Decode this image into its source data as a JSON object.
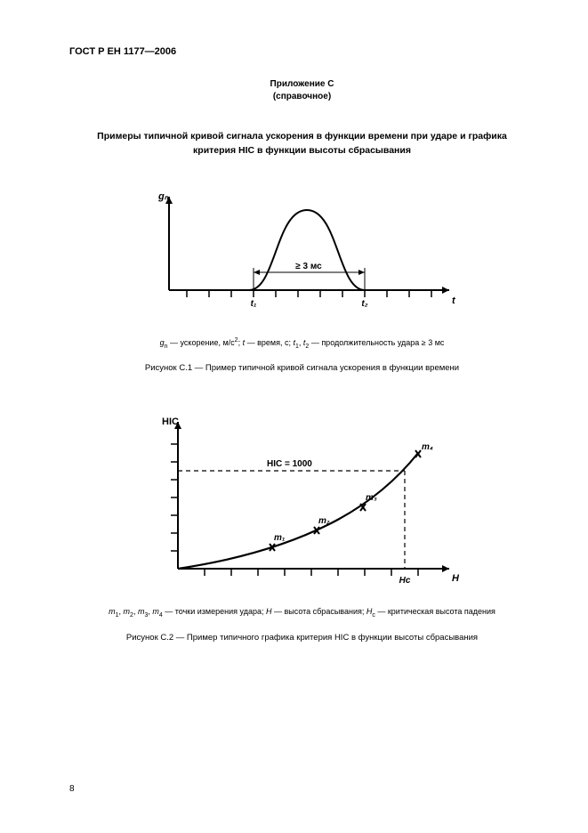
{
  "doc_header": "ГОСТ Р ЕН 1177—2006",
  "annex": {
    "line1": "Приложение С",
    "line2": "(справочное)"
  },
  "section_title": {
    "line1": "Примеры типичной кривой сигнала ускорения в функции времени при ударе и графика",
    "line2": "критерия HIC в функции высоты сбрасывания"
  },
  "figure1": {
    "y_label": "gₙ",
    "x_label": "t",
    "t1_label": "t₁",
    "t2_label": "t₂",
    "duration_label": "≥ 3 мс",
    "stroke": "#000000",
    "stroke_width": 1.6,
    "axis_width": 2,
    "legend_html": "<i>g</i><span class=\"sub\">n</span> — ускорение, м/с<span class=\"sup\">2</span>; <i>t</i> — время, с; <i>t</i><span class=\"sub\">1</span>, <i>t</i><span class=\"sub\">2</span> — продолжительность удара ≥ 3 мс",
    "caption": "Рисунок С.1 — Пример типичной кривой сигнала ускорения в функции времени"
  },
  "figure2": {
    "y_label": "HIC",
    "x_label": "H",
    "hic_line_label": "HIC = 1000",
    "hc_label": "Hc",
    "m_labels": [
      "m₁",
      "m₂",
      "m₃",
      "m₄"
    ],
    "stroke": "#000000",
    "stroke_width": 1.6,
    "axis_width": 2,
    "legend_html": "<i>m</i><span class=\"sub\">1</span>, <i>m</i><span class=\"sub\">2</span>, <i>m</i><span class=\"sub\">3</span>, <i>m</i><span class=\"sub\">4</span> — точки измерения удара; <i>H</i> — высота сбрасывания; <i>H</i><span class=\"sub\">c</span> — критическая высота падения",
    "caption": "Рисунок С.2 — Пример типичного графика критерия HIC в функции высоты сбрасывания"
  },
  "page_number": "8"
}
